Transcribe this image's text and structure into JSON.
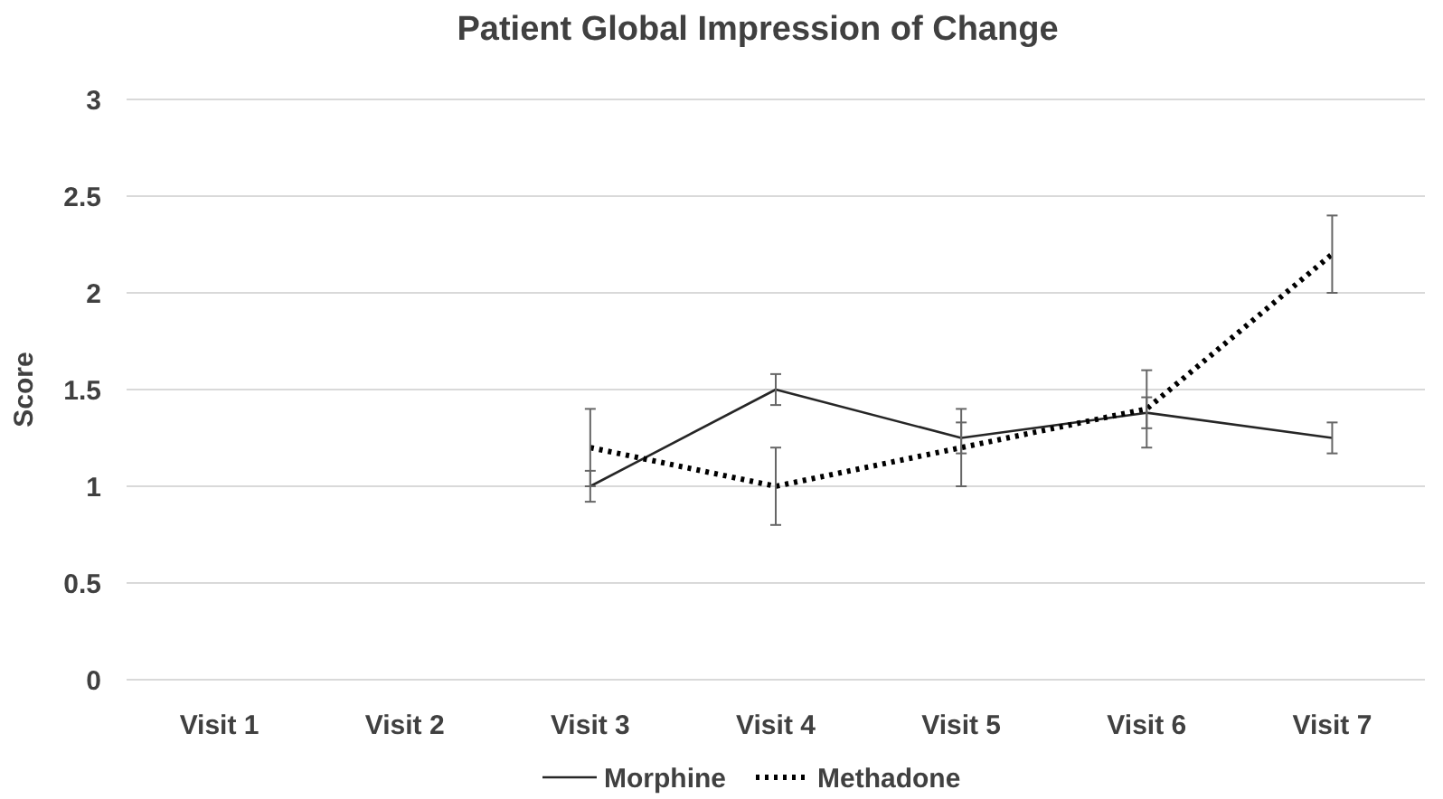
{
  "chart_data": {
    "type": "line",
    "title": "Patient Global Impression of Change",
    "ylabel": "Score",
    "categories": [
      "Visit 1",
      "Visit 2",
      "Visit 3",
      "Visit 4",
      "Visit 5",
      "Visit 6",
      "Visit 7"
    ],
    "series": [
      {
        "name": "Morphine",
        "color": "#262626",
        "line_style": "solid",
        "values": [
          null,
          null,
          1.0,
          1.5,
          1.25,
          1.38,
          1.25
        ],
        "errors": [
          null,
          null,
          0.08,
          0.08,
          0.08,
          0.08,
          0.08
        ]
      },
      {
        "name": "Methadone",
        "color": "#000000",
        "line_style": "dotted",
        "values": [
          null,
          null,
          1.2,
          1.0,
          1.2,
          1.4,
          2.2
        ],
        "errors": [
          null,
          null,
          0.2,
          0.2,
          0.2,
          0.2,
          0.2
        ]
      }
    ],
    "ylim": [
      0,
      3
    ],
    "yticks": [
      0,
      0.5,
      1,
      1.5,
      2,
      2.5,
      3
    ],
    "grid": "y",
    "legend": "bottom",
    "marker": "none"
  }
}
